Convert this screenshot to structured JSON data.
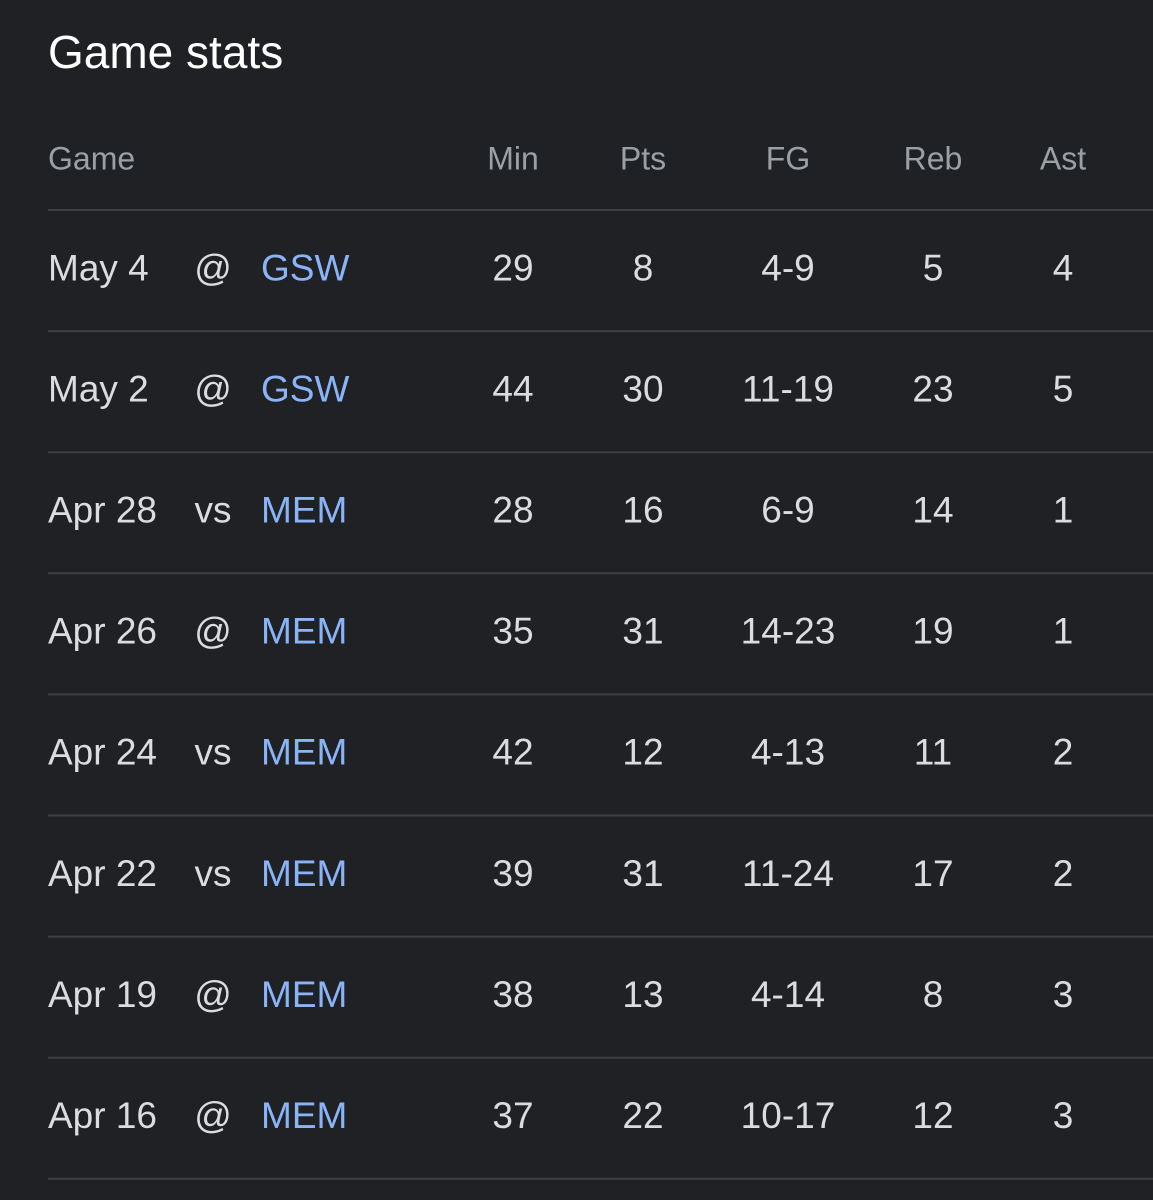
{
  "header": {
    "title": "Game stats"
  },
  "table": {
    "columns": [
      "Game",
      "Min",
      "Pts",
      "FG",
      "Reb",
      "Ast"
    ],
    "rows": [
      [
        "May 4",
        "@",
        "GSW",
        29,
        8,
        "4-9",
        5,
        4
      ],
      [
        "May 2",
        "@",
        "GSW",
        44,
        30,
        "11-19",
        23,
        5
      ],
      [
        "Apr 28",
        "vs",
        "MEM",
        28,
        16,
        "6-9",
        14,
        1
      ],
      [
        "Apr 26",
        "@",
        "MEM",
        35,
        31,
        "14-23",
        19,
        1
      ],
      [
        "Apr 24",
        "vs",
        "MEM",
        42,
        12,
        "4-13",
        11,
        2
      ],
      [
        "Apr 22",
        "vs",
        "MEM",
        39,
        31,
        "11-24",
        17,
        2
      ],
      [
        "Apr 19",
        "@",
        "MEM",
        38,
        13,
        "4-14",
        8,
        3
      ],
      [
        "Apr 16",
        "@",
        "MEM",
        37,
        22,
        "10-17",
        12,
        3
      ]
    ]
  }
}
